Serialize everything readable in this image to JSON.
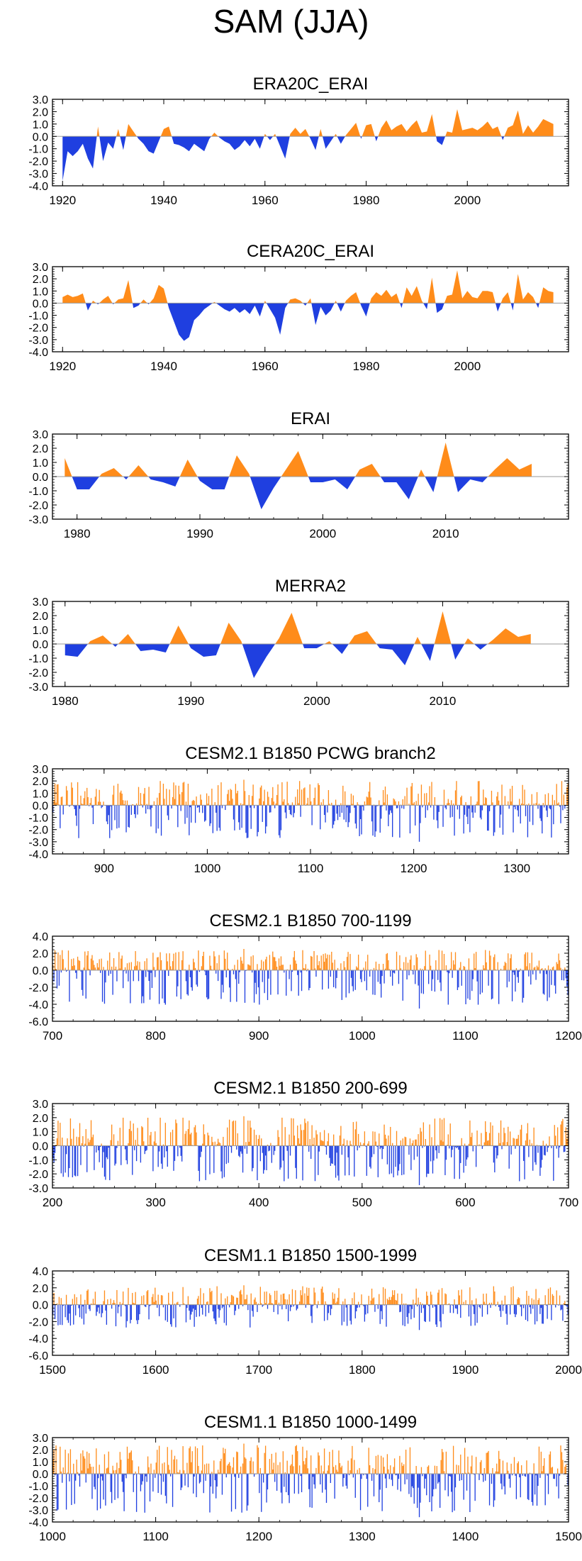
{
  "page_title": "SAM (JJA)",
  "colors": {
    "positive": "#ff8c1a",
    "negative": "#1f3fe0",
    "axis": "#000000",
    "zero_line": "#9a9a9a"
  },
  "chart_data": [
    {
      "type": "area",
      "title": "ERA20C_ERAI",
      "ylim": [
        -4,
        3
      ],
      "yticks": [
        "3.0",
        "2.0",
        "1.0",
        "0.0",
        "-1.0",
        "-2.0",
        "-3.0",
        "-4.0"
      ],
      "xlim": [
        1918,
        2020
      ],
      "xticks": [
        "1920",
        "1940",
        "1960",
        "1980",
        "2000"
      ],
      "series_mode": "annual",
      "x": [
        1920,
        1921,
        1922,
        1923,
        1924,
        1925,
        1926,
        1927,
        1928,
        1929,
        1930,
        1931,
        1932,
        1933,
        1934,
        1935,
        1936,
        1937,
        1938,
        1939,
        1940,
        1941,
        1942,
        1943,
        1944,
        1945,
        1946,
        1947,
        1948,
        1949,
        1950,
        1951,
        1952,
        1953,
        1954,
        1955,
        1956,
        1957,
        1958,
        1959,
        1960,
        1961,
        1962,
        1963,
        1964,
        1965,
        1966,
        1967,
        1968,
        1969,
        1970,
        1971,
        1972,
        1973,
        1974,
        1975,
        1976,
        1977,
        1978,
        1979,
        1980,
        1981,
        1982,
        1983,
        1984,
        1985,
        1986,
        1987,
        1988,
        1989,
        1990,
        1991,
        1992,
        1993,
        1994,
        1995,
        1996,
        1997,
        1998,
        1999,
        2000,
        2001,
        2002,
        2003,
        2004,
        2005,
        2006,
        2007,
        2008,
        2009,
        2010,
        2011,
        2012,
        2013,
        2014,
        2015,
        2016,
        2017
      ],
      "values": [
        -3.6,
        -1.2,
        -1.6,
        -1.2,
        -0.6,
        -1.8,
        -2.6,
        0.8,
        -2.0,
        -0.5,
        -1.0,
        0.6,
        -1.1,
        1.0,
        0.4,
        -0.2,
        -0.6,
        -1.2,
        -1.4,
        -0.4,
        0.6,
        0.8,
        -0.6,
        -0.7,
        -0.9,
        -1.2,
        -0.6,
        -0.9,
        -1.2,
        -0.2,
        0.3,
        -0.1,
        -0.4,
        -0.6,
        -1.1,
        -0.8,
        -0.3,
        -0.8,
        -0.2,
        -1.0,
        0.2,
        -0.3,
        0.2,
        -0.8,
        -1.8,
        0.2,
        0.7,
        0.2,
        0.6,
        -0.2,
        -1.1,
        0.6,
        -1.0,
        -0.4,
        0.2,
        -0.6,
        0.1,
        0.6,
        1.1,
        -0.2,
        0.9,
        1.0,
        -0.4,
        0.7,
        1.3,
        0.5,
        0.8,
        1.0,
        0.4,
        0.9,
        1.3,
        0.3,
        0.4,
        1.8,
        -0.4,
        -0.7,
        0.4,
        0.3,
        2.2,
        0.5,
        0.6,
        0.7,
        0.5,
        0.8,
        1.2,
        0.6,
        0.8,
        -0.3,
        0.7,
        0.9,
        2.1,
        0.2,
        0.9,
        0.3,
        0.8,
        1.4,
        1.2,
        1.0
      ]
    },
    {
      "type": "area",
      "title": "CERA20C_ERAI",
      "ylim": [
        -4,
        3
      ],
      "yticks": [
        "3.0",
        "2.0",
        "1.0",
        "0.0",
        "-1.0",
        "-2.0",
        "-3.0",
        "-4.0"
      ],
      "xlim": [
        1918,
        2020
      ],
      "xticks": [
        "1920",
        "1940",
        "1960",
        "1980",
        "2000"
      ],
      "series_mode": "annual",
      "x": [
        1920,
        1921,
        1922,
        1923,
        1924,
        1925,
        1926,
        1927,
        1928,
        1929,
        1930,
        1931,
        1932,
        1933,
        1934,
        1935,
        1936,
        1937,
        1938,
        1939,
        1940,
        1941,
        1942,
        1943,
        1944,
        1945,
        1946,
        1947,
        1948,
        1949,
        1950,
        1951,
        1952,
        1953,
        1954,
        1955,
        1956,
        1957,
        1958,
        1959,
        1960,
        1961,
        1962,
        1963,
        1964,
        1965,
        1966,
        1967,
        1968,
        1969,
        1970,
        1971,
        1972,
        1973,
        1974,
        1975,
        1976,
        1977,
        1978,
        1979,
        1980,
        1981,
        1982,
        1983,
        1984,
        1985,
        1986,
        1987,
        1988,
        1989,
        1990,
        1991,
        1992,
        1993,
        1994,
        1995,
        1996,
        1997,
        1998,
        1999,
        2000,
        2001,
        2002,
        2003,
        2004,
        2005,
        2006,
        2007,
        2008,
        2009,
        2010,
        2011,
        2012,
        2013,
        2014,
        2015,
        2016,
        2017
      ],
      "values": [
        0.5,
        0.7,
        0.5,
        0.6,
        0.8,
        -0.6,
        0.2,
        -0.1,
        0.3,
        0.6,
        -0.1,
        0.3,
        0.4,
        1.9,
        -0.4,
        -0.2,
        0.3,
        -0.1,
        0.4,
        1.5,
        1.2,
        -0.4,
        -1.5,
        -2.6,
        -3.1,
        -2.8,
        -1.4,
        -1.0,
        -0.5,
        -0.2,
        0.1,
        -0.2,
        -0.5,
        -0.7,
        -0.4,
        -0.8,
        -0.5,
        -0.9,
        -0.2,
        -1.1,
        0.2,
        -0.5,
        -1.2,
        -2.6,
        -0.4,
        0.3,
        0.4,
        0.2,
        -0.2,
        0.4,
        -1.8,
        -0.3,
        -1.0,
        -0.6,
        0.2,
        -0.7,
        0.2,
        0.6,
        0.9,
        -0.2,
        -1.1,
        0.4,
        0.9,
        0.6,
        1.1,
        0.5,
        0.8,
        -0.4,
        1.3,
        0.6,
        1.4,
        0.2,
        -0.5,
        2.1,
        -0.8,
        -0.5,
        0.6,
        0.7,
        2.7,
        0.4,
        1.0,
        0.5,
        0.4,
        1.0,
        1.0,
        0.9,
        -0.7,
        0.4,
        0.9,
        -0.6,
        2.4,
        0.3,
        0.9,
        0.5,
        -0.4,
        1.3,
        1.0,
        0.9
      ]
    },
    {
      "type": "area",
      "title": "ERAI",
      "ylim": [
        -3,
        3
      ],
      "yticks": [
        "3.0",
        "2.0",
        "1.0",
        "0.0",
        "-1.0",
        "-2.0",
        "-3.0"
      ],
      "xlim": [
        1978,
        2020
      ],
      "xticks": [
        "1980",
        "1990",
        "2000",
        "2010"
      ],
      "series_mode": "annual",
      "x": [
        1979,
        1980,
        1981,
        1982,
        1983,
        1984,
        1985,
        1986,
        1987,
        1988,
        1989,
        1990,
        1991,
        1992,
        1993,
        1994,
        1995,
        1996,
        1997,
        1998,
        1999,
        2000,
        2001,
        2002,
        2003,
        2004,
        2005,
        2006,
        2007,
        2008,
        2009,
        2010,
        2011,
        2012,
        2013,
        2014,
        2015,
        2016,
        2017
      ],
      "values": [
        1.3,
        -0.9,
        -0.9,
        0.2,
        0.6,
        -0.2,
        0.8,
        -0.2,
        -0.4,
        -0.7,
        1.2,
        -0.3,
        -0.9,
        -0.9,
        1.5,
        0.2,
        -2.3,
        -0.8,
        0.5,
        1.8,
        -0.4,
        -0.4,
        -0.2,
        -0.9,
        0.5,
        0.9,
        -0.4,
        -0.4,
        -1.6,
        0.5,
        -1.1,
        2.4,
        -1.1,
        -0.2,
        -0.4,
        0.5,
        1.3,
        0.5,
        0.9
      ]
    },
    {
      "type": "area",
      "title": "MERRA2",
      "ylim": [
        -3,
        3
      ],
      "yticks": [
        "3.0",
        "2.0",
        "1.0",
        "0.0",
        "-1.0",
        "-2.0",
        "-3.0"
      ],
      "xlim": [
        1979,
        2020
      ],
      "xticks": [
        "1980",
        "1990",
        "2000",
        "2010"
      ],
      "series_mode": "annual",
      "x": [
        1980,
        1981,
        1982,
        1983,
        1984,
        1985,
        1986,
        1987,
        1988,
        1989,
        1990,
        1991,
        1992,
        1993,
        1994,
        1995,
        1996,
        1997,
        1998,
        1999,
        2000,
        2001,
        2002,
        2003,
        2004,
        2005,
        2006,
        2007,
        2008,
        2009,
        2010,
        2011,
        2012,
        2013,
        2014,
        2015,
        2016,
        2017
      ],
      "values": [
        -0.8,
        -0.9,
        0.2,
        0.6,
        -0.2,
        0.7,
        -0.5,
        -0.4,
        -0.6,
        1.3,
        -0.3,
        -0.9,
        -0.8,
        1.5,
        0.2,
        -2.4,
        -0.9,
        0.4,
        2.2,
        -0.3,
        -0.3,
        0.2,
        -0.7,
        0.6,
        0.9,
        -0.3,
        -0.4,
        -1.5,
        0.5,
        -1.2,
        2.3,
        -1.1,
        0.4,
        -0.4,
        0.3,
        1.1,
        0.5,
        0.7
      ]
    },
    {
      "type": "bar",
      "title": "CESM2.1 B1850 PCWG branch2",
      "ylim": [
        -4,
        3
      ],
      "yticks": [
        "3.0",
        "2.0",
        "1.0",
        "0.0",
        "-1.0",
        "-2.0",
        "-3.0",
        "-4.0"
      ],
      "xlim": [
        850,
        1350
      ],
      "xticks": [
        "900",
        "1000",
        "1100",
        "1200",
        "1300"
      ],
      "series_mode": "dense",
      "n_points": 500,
      "pos_max": 2.1,
      "neg_min": -3.0
    },
    {
      "type": "bar",
      "title": "CESM2.1 B1850 700-1199",
      "ylim": [
        -6,
        4
      ],
      "yticks": [
        "4.0",
        "2.0",
        "0.0",
        "-2.0",
        "-4.0",
        "-6.0"
      ],
      "xlim": [
        700,
        1200
      ],
      "xticks": [
        "700",
        "800",
        "900",
        "1000",
        "1100",
        "1200"
      ],
      "series_mode": "dense",
      "n_points": 500,
      "pos_max": 2.5,
      "neg_min": -4.5
    },
    {
      "type": "bar",
      "title": "CESM2.1 B1850 200-699",
      "ylim": [
        -3,
        3
      ],
      "yticks": [
        "3.0",
        "2.0",
        "1.0",
        "0.0",
        "-1.0",
        "-2.0",
        "-3.0"
      ],
      "xlim": [
        200,
        700
      ],
      "xticks": [
        "200",
        "300",
        "400",
        "500",
        "600",
        "700"
      ],
      "series_mode": "dense",
      "n_points": 500,
      "pos_max": 2.1,
      "neg_min": -2.8
    },
    {
      "type": "bar",
      "title": "CESM1.1 B1850 1500-1999",
      "ylim": [
        -6,
        4
      ],
      "yticks": [
        "4.0",
        "2.0",
        "0.0",
        "-2.0",
        "-4.0",
        "-6.0"
      ],
      "xlim": [
        1500,
        2000
      ],
      "xticks": [
        "1500",
        "1600",
        "1700",
        "1800",
        "1900",
        "2000"
      ],
      "series_mode": "dense",
      "n_points": 500,
      "pos_max": 2.3,
      "neg_min": -3.0
    },
    {
      "type": "bar",
      "title": "CESM1.1 B1850 1000-1499",
      "ylim": [
        -4,
        3
      ],
      "yticks": [
        "3.0",
        "2.0",
        "1.0",
        "0.0",
        "-1.0",
        "-2.0",
        "-3.0",
        "-4.0"
      ],
      "xlim": [
        1000,
        1500
      ],
      "xticks": [
        "1000",
        "1100",
        "1200",
        "1300",
        "1400",
        "1500"
      ],
      "series_mode": "dense",
      "n_points": 500,
      "pos_max": 2.5,
      "neg_min": -3.6
    }
  ]
}
